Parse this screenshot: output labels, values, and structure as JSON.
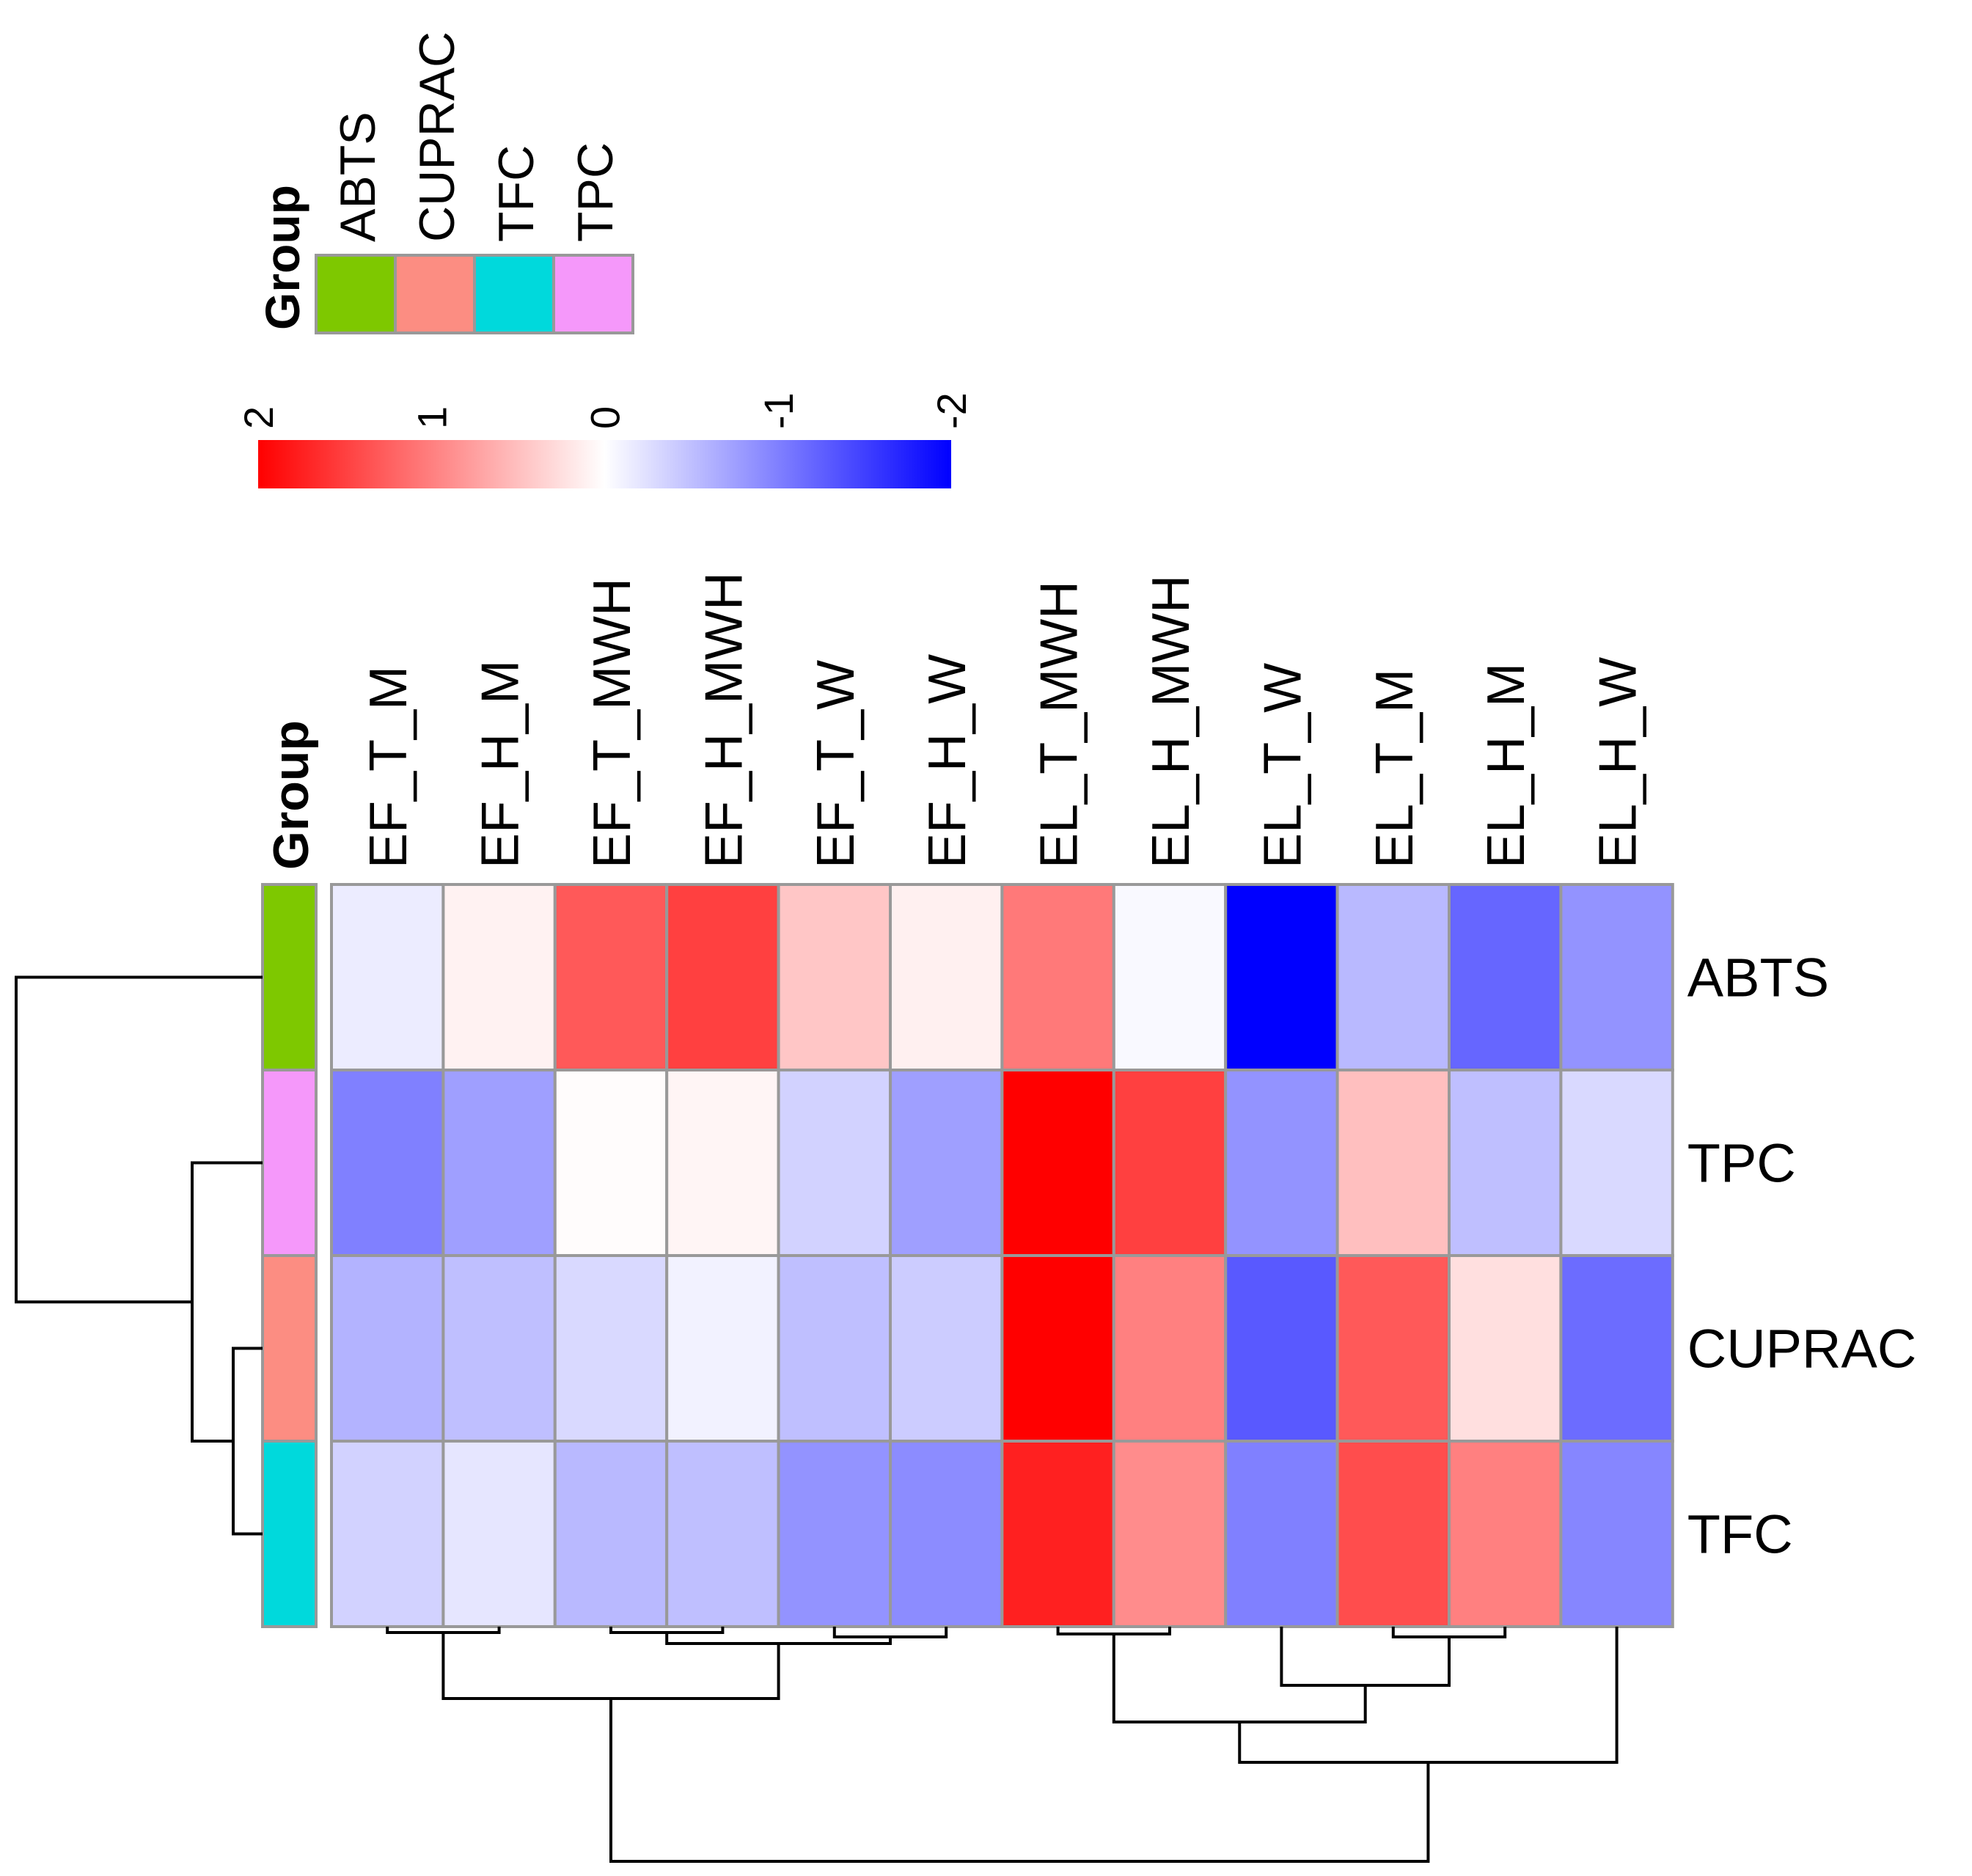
{
  "chart_data": {
    "type": "heatmap",
    "title": "",
    "color_scale": {
      "min": -2,
      "max": 2,
      "ticks": [
        "2",
        "1",
        "0",
        "-1",
        "-2"
      ],
      "tick_values": [
        2,
        1,
        0,
        -1,
        -2
      ],
      "low_color": "#0000ff",
      "mid_color": "#ffffff",
      "high_color": "#ff0000"
    },
    "columns": [
      "EF_T_M",
      "EF_H_M",
      "EF_T_MWH",
      "EF_H_MWH",
      "EF_T_W",
      "EF_H_W",
      "EL_T_MWH",
      "EL_H_MWH",
      "EL_T_W",
      "EL_T_M",
      "EL_H_M",
      "EL_H_W"
    ],
    "rows": [
      "ABTS",
      "TPC",
      "CUPRAC",
      "TFC"
    ],
    "row_groups": [
      "ABTS",
      "TPC",
      "CUPRAC",
      "TFC"
    ],
    "values": [
      [
        -0.15,
        0.1,
        1.3,
        1.5,
        0.45,
        0.12,
        1.05,
        -0.05,
        -2.0,
        -0.55,
        -1.2,
        -0.85
      ],
      [
        -1.0,
        -0.75,
        0.02,
        0.08,
        -0.35,
        -0.75,
        2.0,
        1.5,
        -0.85,
        0.5,
        -0.5,
        -0.3
      ],
      [
        -0.6,
        -0.5,
        -0.3,
        -0.1,
        -0.5,
        -0.4,
        2.0,
        1.0,
        -1.3,
        1.3,
        0.25,
        -1.15
      ],
      [
        -0.35,
        -0.2,
        -0.55,
        -0.5,
        -0.85,
        -0.9,
        1.75,
        0.9,
        -1.0,
        1.4,
        1.0,
        -0.95
      ]
    ],
    "legend_group": {
      "title": "Group",
      "items": [
        {
          "label": "ABTS",
          "color": "#7ec800"
        },
        {
          "label": "CUPRAC",
          "color": "#fc8d82"
        },
        {
          "label": "TFC",
          "color": "#00d9dc"
        },
        {
          "label": "TPC",
          "color": "#f598fa"
        }
      ]
    },
    "annotation_label": "Group",
    "row_dendrogram": "((TPC,(CUPRAC,TFC)),ABTS)",
    "col_dendrogram": "(((EF_T_M,EF_H_M),((EF_T_MWH,EF_H_MWH),(EF_T_W,EF_H_W))),(((EL_T_MWH,EL_H_MWH),((EL_T_W),(EL_T_M,EL_H_M))),EL_H_W))"
  }
}
